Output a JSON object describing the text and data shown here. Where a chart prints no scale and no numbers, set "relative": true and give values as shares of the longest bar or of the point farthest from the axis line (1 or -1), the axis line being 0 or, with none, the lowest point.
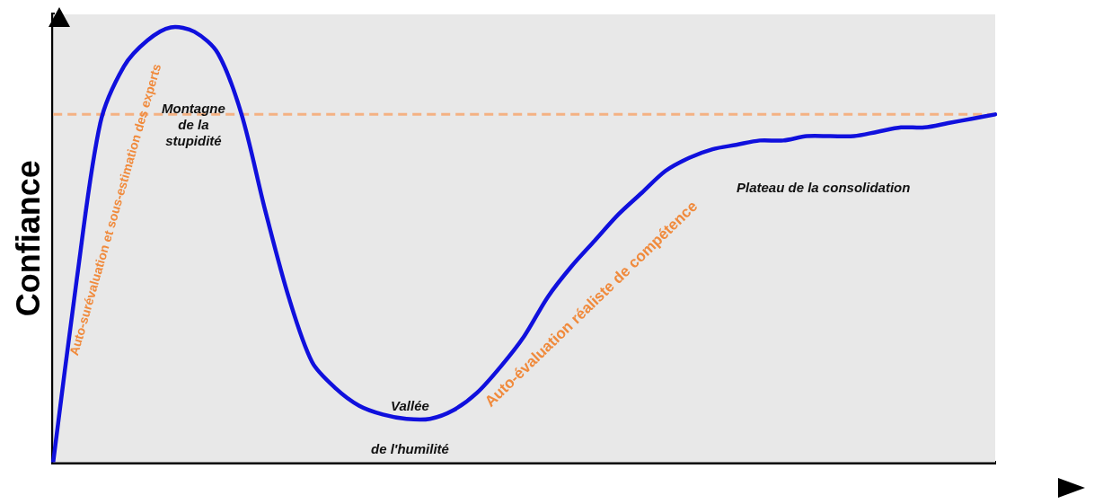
{
  "chart_data": {
    "type": "line",
    "relative": true,
    "ylabel": "Confiance",
    "grid": false,
    "legend": false,
    "marker": "none",
    "line_style": "solid",
    "categories": [
      null,
      null,
      null,
      null,
      null,
      null,
      null,
      null,
      null,
      null,
      null,
      null,
      null,
      null,
      null,
      null,
      null,
      null,
      null,
      null,
      null,
      null,
      null,
      null,
      null,
      null,
      null,
      null,
      null,
      null,
      null,
      null,
      null,
      null,
      null,
      null,
      null,
      null,
      null,
      null,
      null
    ],
    "series": [
      {
        "color": "#1010dd",
        "values": [
          0,
          0.42,
          0.78,
          0.91,
          0.97,
          1.0,
          0.99,
          0.94,
          0.8,
          0.58,
          0.38,
          0.23,
          0.17,
          0.13,
          0.11,
          0.1,
          0.1,
          0.12,
          0.16,
          0.22,
          0.29,
          0.38,
          0.45,
          0.51,
          0.57,
          0.62,
          0.67,
          0.7,
          0.72,
          0.73,
          0.74,
          0.74,
          0.75,
          0.75,
          0.75,
          0.76,
          0.77,
          0.77,
          0.78,
          0.79,
          0.8
        ]
      }
    ],
    "ref_lines": [
      {
        "axis": "y",
        "value": 0.8,
        "color": "#f4b183",
        "line_style": "dashed"
      }
    ],
    "annotations": [
      "Auto-surévaluation et sous-estimation des experts",
      "Montagne\nde la\nstupidité",
      "Vallée\nde l'humilité",
      "Auto-évaluation réaliste de compétence",
      "Plateau de la consolidation"
    ]
  }
}
